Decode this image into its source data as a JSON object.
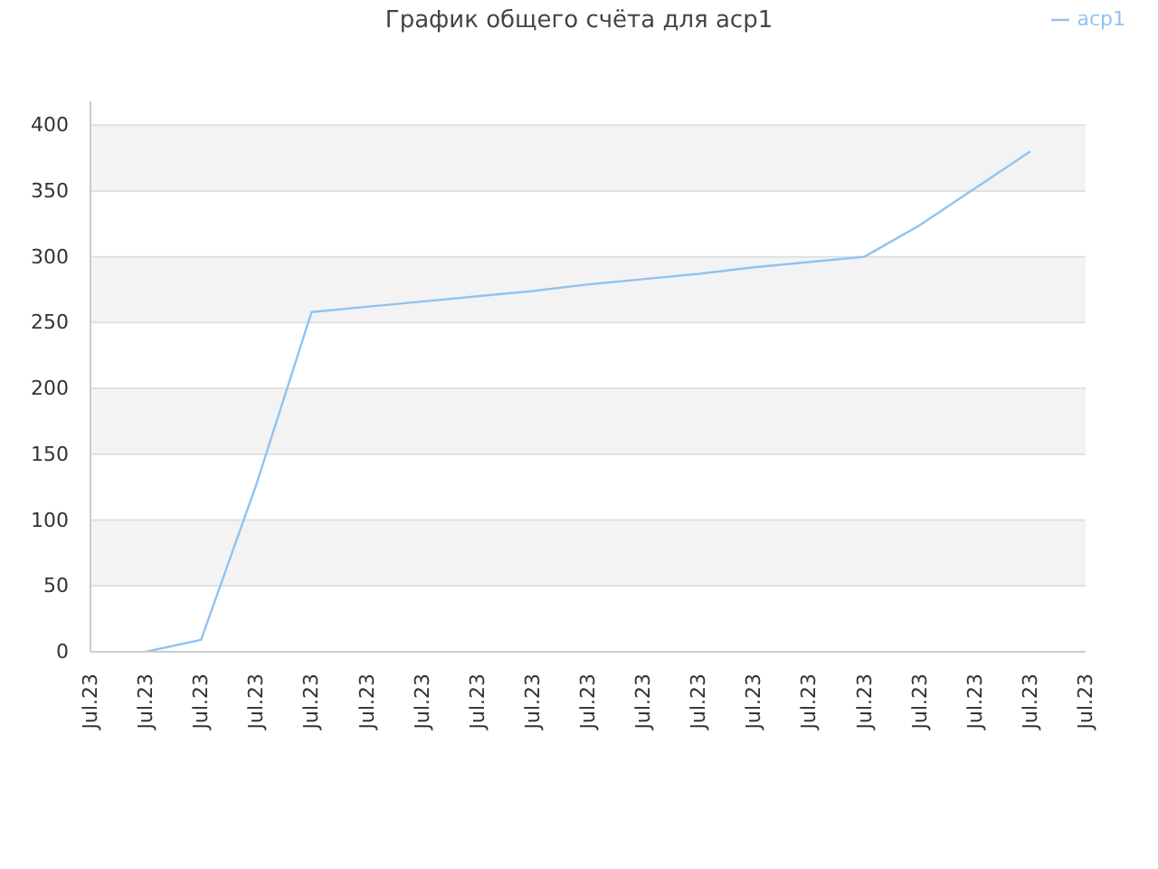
{
  "chart_data": {
    "type": "line",
    "title": "График общего счёта для acp1",
    "categories": [
      "Jul.23",
      "Jul.23",
      "Jul.23",
      "Jul.23",
      "Jul.23",
      "Jul.23",
      "Jul.23",
      "Jul.23",
      "Jul.23",
      "Jul.23",
      "Jul.23",
      "Jul.23",
      "Jul.23",
      "Jul.23",
      "Jul.23",
      "Jul.23",
      "Jul.23",
      "Jul.23",
      "Jul.23"
    ],
    "series": [
      {
        "name": "acp1",
        "color": "#90c3f0",
        "values": [
          null,
          0,
          9,
          127,
          258,
          262,
          266,
          270,
          274,
          279,
          283,
          287,
          292,
          296,
          300,
          324,
          352,
          380,
          null
        ]
      }
    ],
    "ylim": [
      0,
      418
    ],
    "yticks": [
      0,
      50,
      100,
      150,
      200,
      250,
      300,
      350,
      400
    ],
    "grid": "y",
    "legend": "top right",
    "marker": "none",
    "line_style": "solid"
  }
}
